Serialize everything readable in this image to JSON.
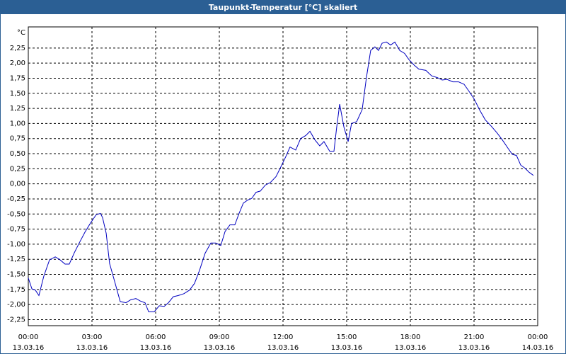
{
  "chart_data": {
    "type": "line",
    "title": "Taupunkt-Temperatur [°C] skaliert",
    "y_label": "°C",
    "xlim": [
      0,
      24
    ],
    "xticks": [
      {
        "value": 0,
        "label": "00:00",
        "date": "13.03.16"
      },
      {
        "value": 3,
        "label": "03:00",
        "date": "13.03.16"
      },
      {
        "value": 6,
        "label": "06:00",
        "date": "13.03.16"
      },
      {
        "value": 9,
        "label": "09:00",
        "date": "13.03.16"
      },
      {
        "value": 12,
        "label": "12:00",
        "date": "13.03.16"
      },
      {
        "value": 15,
        "label": "15:00",
        "date": "13.03.16"
      },
      {
        "value": 18,
        "label": "18:00",
        "date": "13.03.16"
      },
      {
        "value": 21,
        "label": "21:00",
        "date": "13.03.16"
      },
      {
        "value": 24,
        "label": "00:00",
        "date": "14.03.16"
      }
    ],
    "ylim": [
      -2.35,
      2.6
    ],
    "yticks": [
      {
        "value": 2.25,
        "label": "2,25"
      },
      {
        "value": 2,
        "label": "2,00"
      },
      {
        "value": 1.75,
        "label": "1,75"
      },
      {
        "value": 1.5,
        "label": "1,50"
      },
      {
        "value": 1.25,
        "label": "1,25"
      },
      {
        "value": 1,
        "label": "1,00"
      },
      {
        "value": 0.75,
        "label": "0,75"
      },
      {
        "value": 0.5,
        "label": "0,50"
      },
      {
        "value": 0.25,
        "label": "0,25"
      },
      {
        "value": 0,
        "label": "0,00"
      },
      {
        "value": -0.25,
        "label": "-0,25"
      },
      {
        "value": -0.5,
        "label": "-0,50"
      },
      {
        "value": -0.75,
        "label": "-0,75"
      },
      {
        "value": -1,
        "label": "-1,00"
      },
      {
        "value": -1.25,
        "label": "-1,25"
      },
      {
        "value": -1.5,
        "label": "-1,50"
      },
      {
        "value": -1.75,
        "label": "-1,75"
      },
      {
        "value": -2,
        "label": "-2,00"
      },
      {
        "value": -2.25,
        "label": "-2,25"
      }
    ],
    "grid": true,
    "x": [
      0,
      0.17,
      0.33,
      0.5,
      0.73,
      1,
      1.27,
      1.5,
      1.73,
      1.93,
      2.17,
      2.4,
      2.67,
      2.93,
      3.2,
      3.4,
      3.5,
      3.67,
      3.83,
      4.07,
      4.33,
      4.6,
      4.83,
      5.07,
      5.27,
      5.5,
      5.67,
      5.93,
      6.17,
      6.4,
      6.6,
      6.83,
      7.07,
      7.33,
      7.6,
      7.83,
      8.07,
      8.33,
      8.6,
      8.83,
      9.07,
      9.27,
      9.5,
      9.73,
      9.93,
      10.13,
      10.33,
      10.53,
      10.73,
      10.93,
      11.17,
      11.4,
      11.67,
      11.87,
      12.13,
      12.33,
      12.6,
      12.83,
      13.07,
      13.27,
      13.5,
      13.73,
      13.93,
      14.2,
      14.4,
      14.53,
      14.67,
      14.87,
      15.07,
      15.23,
      15.47,
      15.73,
      15.93,
      16.13,
      16.33,
      16.5,
      16.67,
      16.87,
      17.07,
      17.27,
      17.5,
      17.73,
      17.93,
      18.17,
      18.4,
      18.73,
      19,
      19.27,
      19.5,
      19.73,
      20,
      20.27,
      20.53,
      20.73,
      21,
      21.27,
      21.53,
      21.8,
      22.07,
      22.33,
      22.6,
      22.8,
      23,
      23.2,
      23.4,
      23.6,
      23.8
    ],
    "series": [
      {
        "color": "#0000c0",
        "values": [
          -1.56,
          -1.74,
          -1.76,
          -1.85,
          -1.53,
          -1.26,
          -1.21,
          -1.26,
          -1.33,
          -1.33,
          -1.14,
          -0.98,
          -0.8,
          -0.65,
          -0.51,
          -0.49,
          -0.56,
          -0.82,
          -1.32,
          -1.62,
          -1.95,
          -1.97,
          -1.92,
          -1.9,
          -1.94,
          -1.97,
          -2.12,
          -2.12,
          -2.02,
          -2.03,
          -1.97,
          -1.87,
          -1.85,
          -1.82,
          -1.76,
          -1.65,
          -1.43,
          -1.15,
          -0.98,
          -0.98,
          -1.02,
          -0.79,
          -0.68,
          -0.68,
          -0.49,
          -0.32,
          -0.27,
          -0.24,
          -0.14,
          -0.12,
          -0.02,
          0.02,
          0.12,
          0.26,
          0.45,
          0.61,
          0.56,
          0.75,
          0.8,
          0.87,
          0.73,
          0.63,
          0.7,
          0.54,
          0.54,
          0.94,
          1.32,
          0.94,
          0.7,
          1,
          1.03,
          1.23,
          1.76,
          2.21,
          2.27,
          2.21,
          2.33,
          2.35,
          2.3,
          2.35,
          2.21,
          2.16,
          2.06,
          1.97,
          1.9,
          1.88,
          1.79,
          1.76,
          1.72,
          1.73,
          1.69,
          1.69,
          1.65,
          1.55,
          1.41,
          1.22,
          1.06,
          0.96,
          0.85,
          0.73,
          0.59,
          0.49,
          0.47,
          0.31,
          0.26,
          0.19,
          0.14
        ]
      }
    ]
  }
}
